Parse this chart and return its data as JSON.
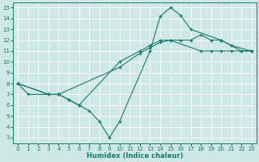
{
  "xlabel": "Humidex (Indice chaleur)",
  "bg_color": "#cde8e5",
  "grid_color": "#ffffff",
  "line_color": "#1a7a6e",
  "xlim": [
    -0.5,
    23.5
  ],
  "ylim": [
    2.5,
    15.5
  ],
  "xticks": [
    0,
    1,
    2,
    3,
    4,
    5,
    6,
    7,
    8,
    9,
    10,
    11,
    12,
    13,
    14,
    15,
    16,
    17,
    18,
    19,
    20,
    21,
    22,
    23
  ],
  "yticks": [
    3,
    4,
    5,
    6,
    7,
    8,
    9,
    10,
    11,
    12,
    13,
    14,
    15
  ],
  "series": [
    {
      "x": [
        0,
        1,
        3,
        4,
        5,
        6,
        7,
        8,
        9,
        10,
        13,
        14,
        15,
        16,
        17,
        20,
        21,
        23
      ],
      "y": [
        8,
        7,
        7,
        7,
        6.5,
        6,
        5.5,
        4.5,
        3,
        4.5,
        11,
        14.2,
        15,
        14.3,
        13,
        12,
        11.5,
        11
      ]
    },
    {
      "x": [
        0,
        3,
        4,
        5,
        6,
        10,
        12,
        13,
        14,
        15,
        16,
        17,
        18,
        19,
        20,
        21,
        22,
        23
      ],
      "y": [
        8,
        7,
        7,
        6.5,
        6,
        10,
        11,
        11.5,
        12,
        12,
        12,
        12,
        12.5,
        12,
        12,
        11.5,
        11,
        11
      ]
    },
    {
      "x": [
        0,
        3,
        4,
        10,
        12,
        13,
        14,
        15,
        18,
        19,
        20,
        21,
        22,
        23
      ],
      "y": [
        8,
        7,
        7,
        9.5,
        10.8,
        11.3,
        11.8,
        12,
        11,
        11,
        11,
        11,
        11,
        11
      ]
    }
  ]
}
